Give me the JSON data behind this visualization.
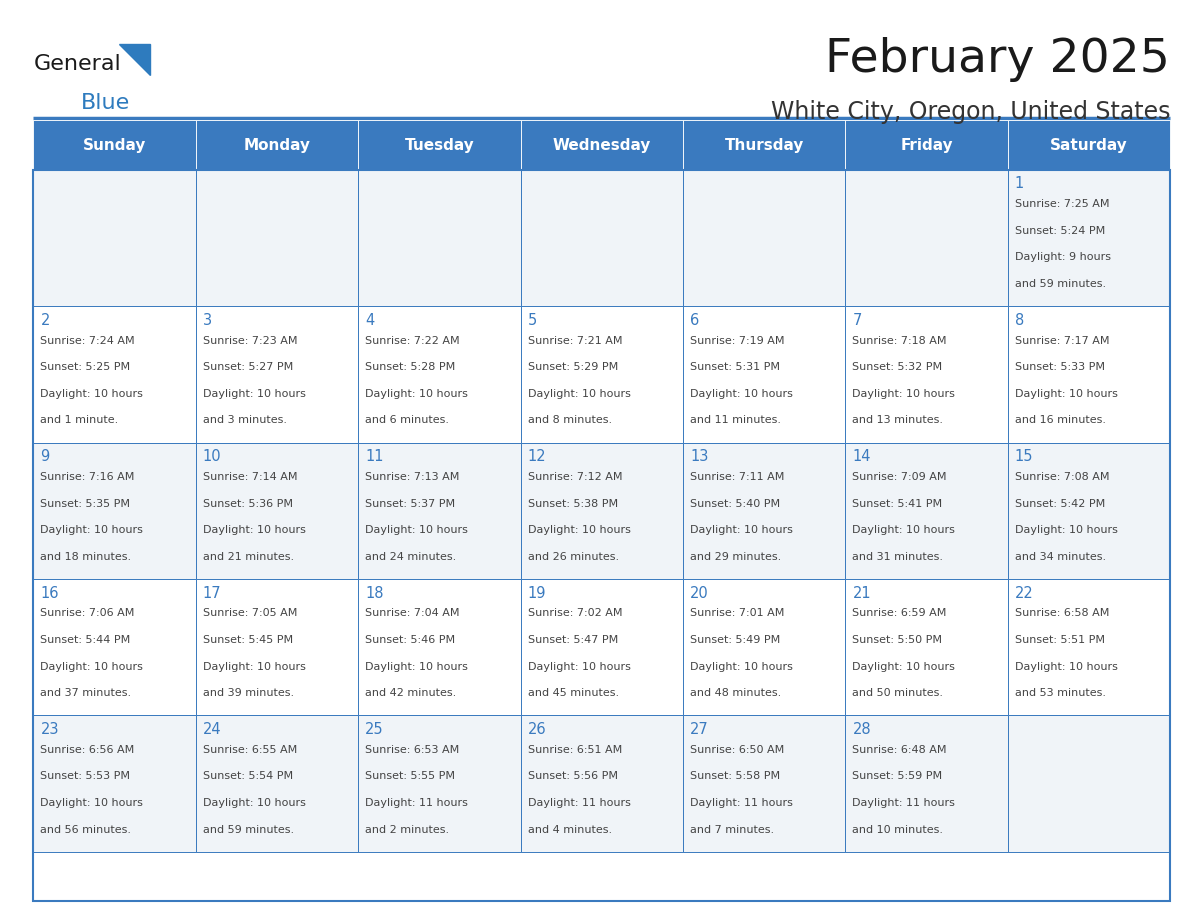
{
  "title": "February 2025",
  "subtitle": "White City, Oregon, United States",
  "days_of_week": [
    "Sunday",
    "Monday",
    "Tuesday",
    "Wednesday",
    "Thursday",
    "Friday",
    "Saturday"
  ],
  "header_bg": "#3a7abf",
  "header_text": "#ffffff",
  "cell_bg_light": "#f0f4f8",
  "cell_bg_white": "#ffffff",
  "cell_border": "#3a7abf",
  "day_number_color": "#3a7abf",
  "info_color": "#444444",
  "title_color": "#1a1a1a",
  "subtitle_color": "#333333",
  "logo_general_color": "#1a1a1a",
  "logo_blue_color": "#2e7bbe",
  "calendar_data": [
    [
      null,
      null,
      null,
      null,
      null,
      null,
      {
        "day": "1",
        "sunrise": "7:25 AM",
        "sunset": "5:24 PM",
        "daylight": "9 hours\nand 59 minutes."
      }
    ],
    [
      {
        "day": "2",
        "sunrise": "7:24 AM",
        "sunset": "5:25 PM",
        "daylight": "10 hours\nand 1 minute."
      },
      {
        "day": "3",
        "sunrise": "7:23 AM",
        "sunset": "5:27 PM",
        "daylight": "10 hours\nand 3 minutes."
      },
      {
        "day": "4",
        "sunrise": "7:22 AM",
        "sunset": "5:28 PM",
        "daylight": "10 hours\nand 6 minutes."
      },
      {
        "day": "5",
        "sunrise": "7:21 AM",
        "sunset": "5:29 PM",
        "daylight": "10 hours\nand 8 minutes."
      },
      {
        "day": "6",
        "sunrise": "7:19 AM",
        "sunset": "5:31 PM",
        "daylight": "10 hours\nand 11 minutes."
      },
      {
        "day": "7",
        "sunrise": "7:18 AM",
        "sunset": "5:32 PM",
        "daylight": "10 hours\nand 13 minutes."
      },
      {
        "day": "8",
        "sunrise": "7:17 AM",
        "sunset": "5:33 PM",
        "daylight": "10 hours\nand 16 minutes."
      }
    ],
    [
      {
        "day": "9",
        "sunrise": "7:16 AM",
        "sunset": "5:35 PM",
        "daylight": "10 hours\nand 18 minutes."
      },
      {
        "day": "10",
        "sunrise": "7:14 AM",
        "sunset": "5:36 PM",
        "daylight": "10 hours\nand 21 minutes."
      },
      {
        "day": "11",
        "sunrise": "7:13 AM",
        "sunset": "5:37 PM",
        "daylight": "10 hours\nand 24 minutes."
      },
      {
        "day": "12",
        "sunrise": "7:12 AM",
        "sunset": "5:38 PM",
        "daylight": "10 hours\nand 26 minutes."
      },
      {
        "day": "13",
        "sunrise": "7:11 AM",
        "sunset": "5:40 PM",
        "daylight": "10 hours\nand 29 minutes."
      },
      {
        "day": "14",
        "sunrise": "7:09 AM",
        "sunset": "5:41 PM",
        "daylight": "10 hours\nand 31 minutes."
      },
      {
        "day": "15",
        "sunrise": "7:08 AM",
        "sunset": "5:42 PM",
        "daylight": "10 hours\nand 34 minutes."
      }
    ],
    [
      {
        "day": "16",
        "sunrise": "7:06 AM",
        "sunset": "5:44 PM",
        "daylight": "10 hours\nand 37 minutes."
      },
      {
        "day": "17",
        "sunrise": "7:05 AM",
        "sunset": "5:45 PM",
        "daylight": "10 hours\nand 39 minutes."
      },
      {
        "day": "18",
        "sunrise": "7:04 AM",
        "sunset": "5:46 PM",
        "daylight": "10 hours\nand 42 minutes."
      },
      {
        "day": "19",
        "sunrise": "7:02 AM",
        "sunset": "5:47 PM",
        "daylight": "10 hours\nand 45 minutes."
      },
      {
        "day": "20",
        "sunrise": "7:01 AM",
        "sunset": "5:49 PM",
        "daylight": "10 hours\nand 48 minutes."
      },
      {
        "day": "21",
        "sunrise": "6:59 AM",
        "sunset": "5:50 PM",
        "daylight": "10 hours\nand 50 minutes."
      },
      {
        "day": "22",
        "sunrise": "6:58 AM",
        "sunset": "5:51 PM",
        "daylight": "10 hours\nand 53 minutes."
      }
    ],
    [
      {
        "day": "23",
        "sunrise": "6:56 AM",
        "sunset": "5:53 PM",
        "daylight": "10 hours\nand 56 minutes."
      },
      {
        "day": "24",
        "sunrise": "6:55 AM",
        "sunset": "5:54 PM",
        "daylight": "10 hours\nand 59 minutes."
      },
      {
        "day": "25",
        "sunrise": "6:53 AM",
        "sunset": "5:55 PM",
        "daylight": "11 hours\nand 2 minutes."
      },
      {
        "day": "26",
        "sunrise": "6:51 AM",
        "sunset": "5:56 PM",
        "daylight": "11 hours\nand 4 minutes."
      },
      {
        "day": "27",
        "sunrise": "6:50 AM",
        "sunset": "5:58 PM",
        "daylight": "11 hours\nand 7 minutes."
      },
      {
        "day": "28",
        "sunrise": "6:48 AM",
        "sunset": "5:59 PM",
        "daylight": "11 hours\nand 10 minutes."
      },
      null
    ]
  ]
}
